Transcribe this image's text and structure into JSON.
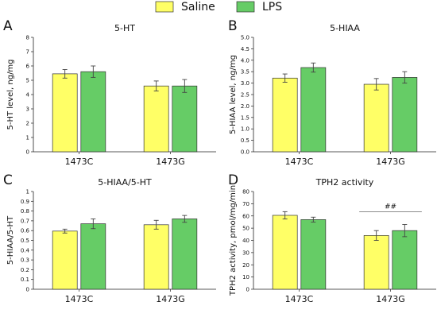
{
  "legend": {
    "items": [
      {
        "label": "Saline",
        "color": "#ffff66"
      },
      {
        "label": "LPS",
        "color": "#66cc66"
      }
    ]
  },
  "colors": {
    "saline": "#ffff66",
    "lps": "#66cc66",
    "edge": "#333333"
  },
  "chart_data": [
    {
      "panel": "A",
      "type": "bar",
      "title": "5-HT",
      "ylabel": "5-HT level, ng/mg",
      "categories": [
        "1473C",
        "1473G"
      ],
      "series": [
        {
          "name": "Saline",
          "values": [
            5.45,
            4.6
          ],
          "errors": [
            0.3,
            0.35
          ]
        },
        {
          "name": "LPS",
          "values": [
            5.6,
            4.6
          ],
          "errors": [
            0.4,
            0.45
          ]
        }
      ],
      "ylim": [
        0,
        8
      ],
      "yticks": [
        0,
        1,
        2,
        3,
        4,
        5,
        6,
        7,
        8
      ],
      "tick_labels": [
        "0",
        "1",
        "2",
        "3",
        "4",
        "5",
        "6",
        "7",
        "8"
      ]
    },
    {
      "panel": "B",
      "type": "bar",
      "title": "5-HIAA",
      "ylabel": "5-HIAA level, ng/mg",
      "categories": [
        "1473C",
        "1473G"
      ],
      "series": [
        {
          "name": "Saline",
          "values": [
            3.22,
            2.95
          ],
          "errors": [
            0.18,
            0.25
          ]
        },
        {
          "name": "LPS",
          "values": [
            3.68,
            3.25
          ],
          "errors": [
            0.2,
            0.25
          ]
        }
      ],
      "ylim": [
        0,
        5
      ],
      "yticks": [
        0,
        0.5,
        1,
        1.5,
        2,
        2.5,
        3,
        3.5,
        4,
        4.5,
        5
      ],
      "tick_labels": [
        "0.0",
        "0.5",
        "1.0",
        "1.5",
        "2.0",
        "2.5",
        "3.0",
        "3.5",
        "4.0",
        "4.5",
        "5.0"
      ]
    },
    {
      "panel": "C",
      "type": "bar",
      "title": "5-HIAA/5-HT",
      "ylabel": "5-HIAA/5-HT",
      "categories": [
        "1473C",
        "1473G"
      ],
      "series": [
        {
          "name": "Saline",
          "values": [
            0.595,
            0.66
          ],
          "errors": [
            0.02,
            0.045
          ]
        },
        {
          "name": "LPS",
          "values": [
            0.67,
            0.72
          ],
          "errors": [
            0.05,
            0.035
          ]
        }
      ],
      "ylim": [
        0,
        1
      ],
      "yticks": [
        0,
        0.1,
        0.2,
        0.3,
        0.4,
        0.5,
        0.6,
        0.7,
        0.8,
        0.9,
        1.0
      ],
      "tick_labels": [
        "0",
        "0.1",
        "0.2",
        "0.3",
        "0.4",
        "0.5",
        "0.6",
        "0.7",
        "0.8",
        "0.9",
        "1"
      ]
    },
    {
      "panel": "D",
      "type": "bar",
      "title": "TPH2 activity",
      "ylabel": "TPH2 activity, pmol/mg/min",
      "categories": [
        "1473C",
        "1473G"
      ],
      "series": [
        {
          "name": "Saline",
          "values": [
            60.5,
            44
          ],
          "errors": [
            3,
            4
          ]
        },
        {
          "name": "LPS",
          "values": [
            57,
            48
          ],
          "errors": [
            2,
            5
          ]
        }
      ],
      "ylim": [
        0,
        80
      ],
      "yticks": [
        0,
        10,
        20,
        30,
        40,
        50,
        60,
        70,
        80
      ],
      "tick_labels": [
        "0",
        "10",
        "20",
        "30",
        "40",
        "50",
        "60",
        "70",
        "80"
      ],
      "annotation": {
        "text": "##",
        "category": "1473G"
      }
    }
  ]
}
